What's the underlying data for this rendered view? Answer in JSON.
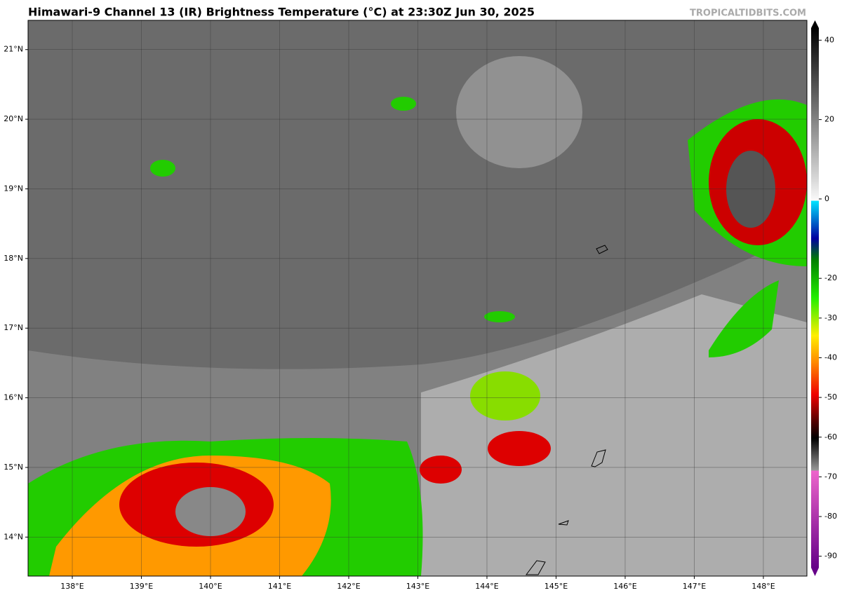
{
  "map": {
    "title": "Himawari-9 Channel 13 (IR) Brightness Temperature (°C) at 23:30Z Jun 30, 2025",
    "credit": "TROPICALTIDBITS.COM",
    "lonlim": [
      137.36,
      148.63
    ],
    "latlim": [
      13.44,
      21.42
    ],
    "lon_ticks": [
      {
        "value": 138,
        "label": "138°E"
      },
      {
        "value": 139,
        "label": "139°E"
      },
      {
        "value": 140,
        "label": "140°E"
      },
      {
        "value": 141,
        "label": "141°E"
      },
      {
        "value": 142,
        "label": "142°E"
      },
      {
        "value": 143,
        "label": "143°E"
      },
      {
        "value": 144,
        "label": "144°E"
      },
      {
        "value": 145,
        "label": "145°E"
      },
      {
        "value": 146,
        "label": "146°E"
      },
      {
        "value": 147,
        "label": "147°E"
      },
      {
        "value": 148,
        "label": "148°E"
      }
    ],
    "lat_ticks": [
      {
        "value": 14,
        "label": "14°N"
      },
      {
        "value": 15,
        "label": "15°N"
      },
      {
        "value": 16,
        "label": "16°N"
      },
      {
        "value": 17,
        "label": "17°N"
      },
      {
        "value": 18,
        "label": "18°N"
      },
      {
        "value": 19,
        "label": "19°N"
      },
      {
        "value": 20,
        "label": "20°N"
      },
      {
        "value": 21,
        "label": "21°N"
      }
    ]
  },
  "colorbar": {
    "lim": [
      -95,
      45
    ],
    "ticks": [
      40,
      20,
      0,
      -20,
      -30,
      -40,
      -50,
      -60,
      -70,
      -80,
      -90
    ]
  }
}
